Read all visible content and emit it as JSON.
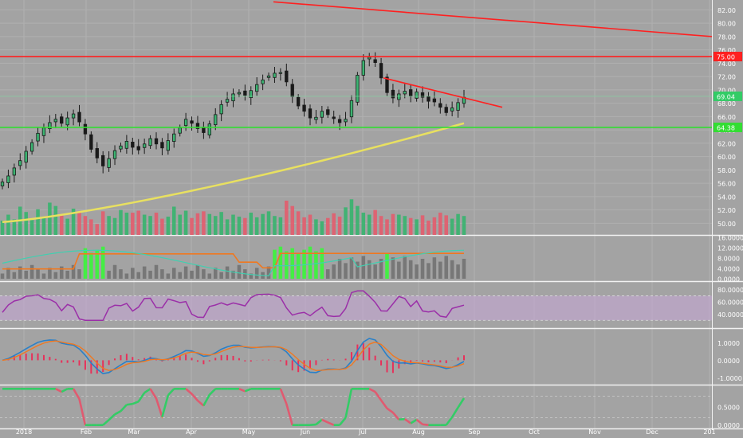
{
  "colors": {
    "background": "#a3a3a3",
    "grid": "#b0b0b0",
    "up": "#3cb371",
    "down": "#e06070",
    "candle": "#1a1a1a",
    "resistance_line": "#ff2020",
    "support_line": "#33dd33",
    "moving_average": "#e8e060",
    "rsi": "#9b2fa8",
    "rsi_band": "#c8a8d8",
    "macd_line": "#2a80c8",
    "signal_line": "#f07820",
    "macd_hist": "#e8305a",
    "stoch_k": "#f07820",
    "stoch_green": "#33cc66",
    "stoch_red": "#e05a70",
    "indicator_bright": "#44ee44",
    "indicator_gray": "#777777",
    "indicator_teal": "#40d0b0"
  },
  "chart_data": [
    {
      "type": "candlestick",
      "panel": "price",
      "price_labels": [
        "82.00",
        "80.00",
        "78.00",
        "76.00",
        "74.00",
        "72.00",
        "70.00",
        "68.00",
        "66.00",
        "64.00",
        "62.00",
        "60.00",
        "58.00",
        "56.00",
        "54.00",
        "52.00",
        "50.00"
      ],
      "ylim": [
        48.5,
        83
      ],
      "x_ticks": [
        "2018",
        "Feb",
        "Mar",
        "Apr",
        "May",
        "Jun",
        "Jul",
        "Aug",
        "Sep",
        "Oct",
        "Nov",
        "Dec",
        "201"
      ],
      "price_markers": [
        {
          "value": 75.0,
          "label": "75.00",
          "color": "#ff2020"
        },
        {
          "value": 69.04,
          "label": "69.04",
          "color": "#33cc66"
        },
        {
          "value": 64.38,
          "label": "64.38",
          "color": "#33dd33"
        }
      ],
      "horizontal_lines": [
        75.0,
        64.38
      ],
      "trend_lines": [
        {
          "from": [
            "Apr 30",
            83.2
          ],
          "to": [
            "2019",
            78.0
          ]
        },
        {
          "from": [
            "Jul 6",
            71.8
          ],
          "to": [
            "Sep 10",
            67.4
          ]
        }
      ],
      "close_series": [
        56.2,
        57.1,
        58.3,
        59.4,
        60.8,
        62.1,
        63.5,
        64.3,
        65.1,
        65.6,
        65.0,
        65.8,
        66.4,
        65.2,
        63.4,
        61.1,
        59.8,
        58.6,
        59.7,
        60.9,
        61.6,
        62.3,
        61.4,
        61.0,
        61.9,
        62.7,
        61.9,
        61.3,
        62.4,
        63.4,
        64.3,
        65.6,
        65.0,
        64.2,
        63.6,
        64.9,
        66.3,
        67.8,
        68.6,
        69.4,
        69.6,
        69.2,
        69.9,
        70.8,
        71.5,
        72.1,
        72.5,
        72.6,
        71.2,
        69.0,
        67.6,
        66.8,
        65.8,
        65.9,
        66.8,
        66.3,
        65.7,
        65.1,
        65.6,
        68.4,
        72.2,
        74.4,
        74.9,
        74.1,
        71.8,
        69.6,
        68.8,
        69.4,
        69.8,
        69.1,
        69.7,
        68.9,
        68.3,
        68.2,
        67.4,
        66.6,
        67.3,
        68.1,
        68.9
      ],
      "volume_series": [
        50.4,
        51.3,
        50.6,
        52.5,
        51.7,
        50.5,
        52.1,
        50.9,
        53.1,
        52.6,
        51.4,
        50.7,
        52.2,
        51.6,
        51.1,
        50.6,
        49.9,
        51.8,
        51.1,
        50.8,
        52.0,
        51.6,
        51.6,
        51.9,
        51.3,
        51.1,
        51.6,
        50.7,
        51.0,
        52.5,
        51.3,
        51.9,
        50.8,
        51.5,
        51.8,
        51.4,
        51.1,
        51.7,
        50.6,
        51.3,
        51.0,
        50.8,
        51.6,
        50.9,
        51.4,
        51.8,
        51.1,
        50.9,
        53.4,
        52.6,
        51.8,
        50.9,
        51.3,
        50.6,
        50.3,
        50.8,
        51.5,
        51.0,
        52.4,
        53.6,
        52.6,
        51.6,
        51.3,
        52.0,
        51.1,
        50.6,
        51.4,
        51.3,
        51.1,
        50.8,
        50.6,
        51.2,
        50.4,
        50.9,
        51.6,
        51.2,
        50.7,
        51.4,
        51.1
      ]
    },
    {
      "type": "bar",
      "panel": "volume_indicator",
      "labels": [
        "16.0000",
        "12.0000",
        "8.0000",
        "4.0000",
        "0.0000"
      ],
      "ylim": [
        0,
        16
      ]
    },
    {
      "type": "line",
      "panel": "rsi",
      "labels": [
        "80.0000",
        "60.0000",
        "40.0000"
      ],
      "ylim": [
        20,
        90
      ],
      "band": [
        30,
        70
      ]
    },
    {
      "type": "line",
      "panel": "macd",
      "labels": [
        "1.0000",
        "0.0000",
        "-1.0000"
      ],
      "ylim": [
        -1.3,
        1.7
      ]
    },
    {
      "type": "line",
      "panel": "stochastic",
      "labels": [
        "0.5000",
        "0.0000"
      ],
      "ylim": [
        -0.05,
        1.05
      ]
    }
  ]
}
